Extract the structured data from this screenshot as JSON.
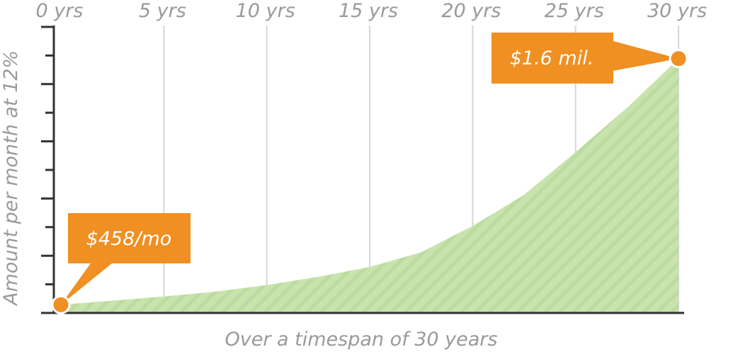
{
  "chart_data": {
    "type": "area",
    "x_ticks": [
      "0 yrs",
      "5 yrs",
      "10 yrs",
      "15 yrs",
      "20 yrs",
      "25 yrs",
      "30 yrs"
    ],
    "x_tick_values": [
      0,
      5,
      10,
      15,
      20,
      25,
      30
    ],
    "xlabel": "Over a timespan of 30 years",
    "ylabel": "Amount per month at 12%",
    "xlim": [
      0,
      30
    ],
    "ylim": [
      0,
      1.7
    ],
    "x": [
      0,
      2.5,
      5,
      7.5,
      10,
      12.5,
      15,
      17.5,
      20,
      22.5,
      25,
      27.5,
      30
    ],
    "values": [
      0.05,
      0.075,
      0.1,
      0.13,
      0.17,
      0.22,
      0.28,
      0.37,
      0.53,
      0.72,
      0.98,
      1.25,
      1.55
    ],
    "annotations": [
      {
        "x": 0,
        "y": 0.05,
        "text": "$458/mo"
      },
      {
        "x": 30,
        "y": 1.55,
        "text": "$1.6 mil."
      }
    ],
    "grid": true,
    "colors": {
      "area": "#c9e3af",
      "area_stripe": "#bcdc9e",
      "callout": "#f08f22",
      "marker": "#f08f22",
      "grid": "#d6d6d6",
      "axis": "#333333",
      "text": "#9a9a9a"
    }
  }
}
